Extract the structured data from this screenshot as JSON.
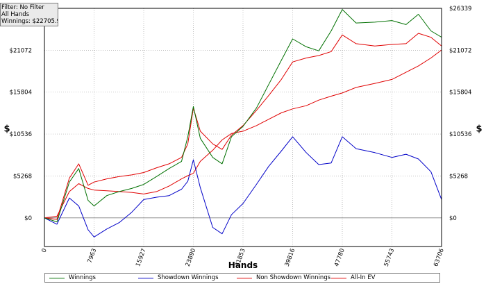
{
  "info_box": {
    "filter": "Filter: No Filter",
    "hands": "All Hands",
    "winnings": "Winnings: $22705.90"
  },
  "chart_data": {
    "type": "line",
    "xlabel": "Hands",
    "ylabel": "$",
    "x_ticks": [
      "0",
      "7963",
      "15927",
      "23890",
      "31853",
      "39816",
      "47780",
      "55743",
      "63706"
    ],
    "y_ticks": [
      "$0",
      "$5268",
      "$10536",
      "$15804",
      "$21072",
      "$26339"
    ],
    "y_ticks_right": [
      "$0",
      "$5268",
      "$10536",
      "$15804",
      "$21072",
      "$26339"
    ],
    "xlim": [
      0,
      63706
    ],
    "ylim": [
      -3600,
      26339
    ],
    "grid": "dotted",
    "legend_position": "bottom",
    "x": [
      0,
      2000,
      4000,
      5500,
      7000,
      7963,
      10000,
      12000,
      14000,
      15927,
      18000,
      20000,
      22000,
      23000,
      23890,
      25000,
      27000,
      28500,
      30000,
      31853,
      34000,
      36000,
      38000,
      39816,
      42000,
      44000,
      46000,
      47780,
      50000,
      53000,
      55743,
      58000,
      60000,
      62000,
      63706
    ],
    "series": [
      {
        "name": "Winnings",
        "color": "#007000",
        "values": [
          0,
          -500,
          4500,
          6200,
          2200,
          1500,
          2800,
          3300,
          3700,
          4200,
          5200,
          6200,
          7100,
          10200,
          14000,
          10000,
          7600,
          6800,
          10200,
          11500,
          13800,
          16800,
          19800,
          22500,
          21500,
          21000,
          23500,
          26200,
          24500,
          24600,
          24800,
          24300,
          25600,
          23500,
          22706
        ]
      },
      {
        "name": "Showdown Winnings",
        "color": "#0000c8",
        "values": [
          0,
          -800,
          2500,
          1500,
          -1500,
          -2400,
          -1400,
          -600,
          700,
          2300,
          2600,
          2800,
          3600,
          4600,
          7300,
          3800,
          -1200,
          -2000,
          400,
          1800,
          4200,
          6500,
          8400,
          10200,
          8200,
          6700,
          6900,
          10200,
          8700,
          8200,
          7600,
          8000,
          7400,
          5800,
          2300
        ]
      },
      {
        "name": "Non Showdown Winnings",
        "color": "#e00000",
        "values": [
          0,
          -200,
          5000,
          6800,
          4100,
          4500,
          4900,
          5200,
          5400,
          5700,
          6300,
          6800,
          7600,
          9300,
          13800,
          10900,
          9300,
          8600,
          10400,
          11600,
          13500,
          15400,
          17400,
          19600,
          20100,
          20400,
          20900,
          23000,
          21900,
          21600,
          21800,
          21900,
          23200,
          22700,
          21600
        ]
      },
      {
        "name": "All-In EV",
        "color": "#e00000",
        "values": [
          0,
          200,
          3300,
          4300,
          3700,
          3500,
          3400,
          3300,
          3200,
          3000,
          3300,
          4000,
          4900,
          5300,
          5600,
          7100,
          8500,
          9800,
          10600,
          10900,
          11600,
          12400,
          13200,
          13700,
          14100,
          14800,
          15300,
          15700,
          16400,
          16900,
          17400,
          18300,
          19100,
          20100,
          21100
        ]
      }
    ]
  },
  "legend": {
    "items": [
      "Winnings",
      "Showdown Winnings",
      "Non Showdown Winnings",
      "All-In EV"
    ],
    "colors": [
      "#007000",
      "#0000c8",
      "#e00000",
      "#e00000"
    ]
  }
}
